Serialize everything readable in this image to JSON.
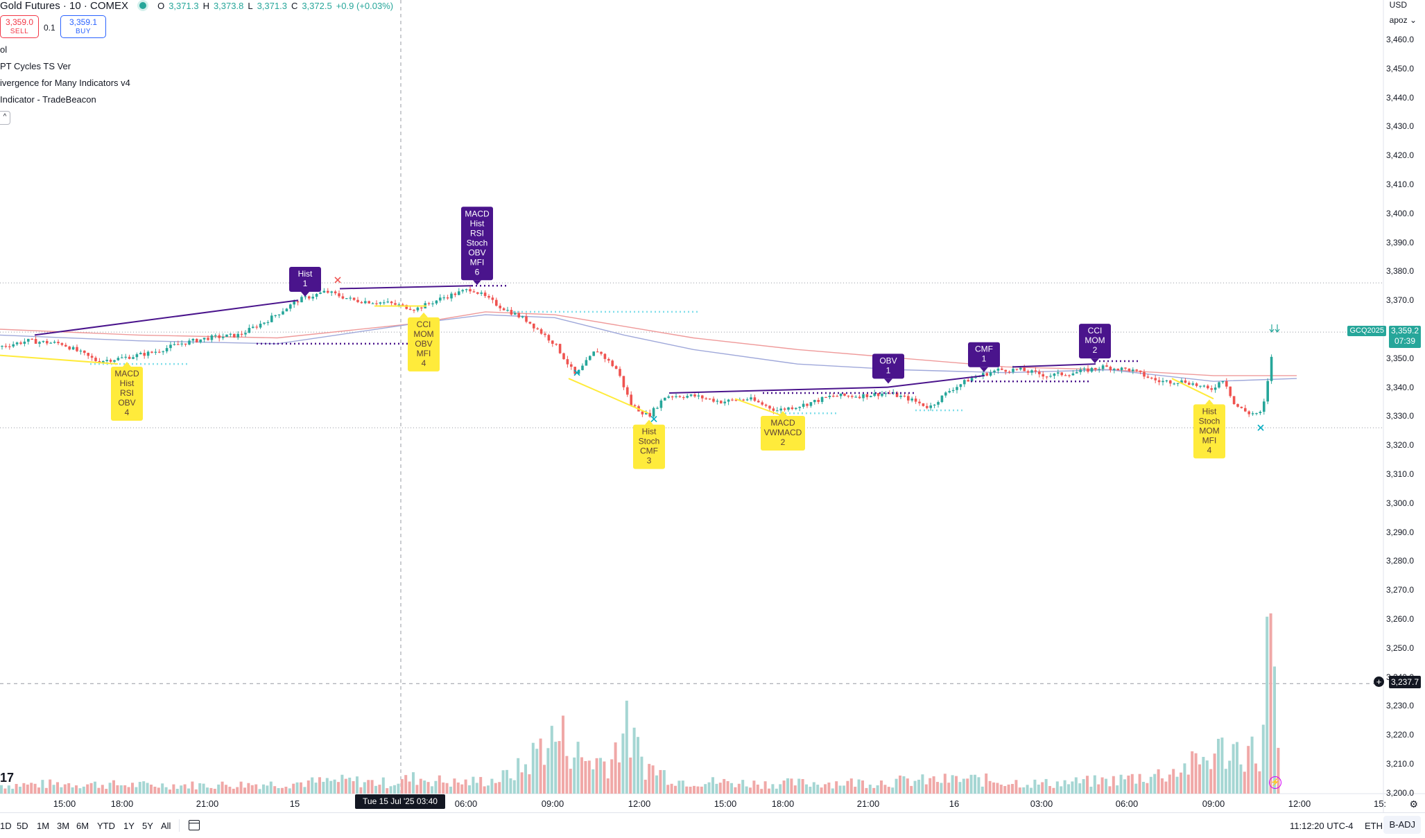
{
  "header": {
    "symbol": "Gold Futures · 10 · COMEX",
    "ohlc": {
      "o_label": "O",
      "o": "3,371.3",
      "h_label": "H",
      "h": "3,373.8",
      "l_label": "L",
      "l": "3,371.3",
      "c_label": "C",
      "c": "3,372.5",
      "change": "+0.9 (+0.03%)"
    },
    "sell_price": "3,359.0",
    "sell_label": "SELL",
    "buy_price": "3,359.1",
    "buy_label": "BUY",
    "quantity": "0.1"
  },
  "legend": [
    "ol",
    "PT Cycles TS Ver",
    "ivergence for Many Indicators v4",
    " Indicator - TradeBeacon"
  ],
  "collapse_label": "^",
  "top_right": {
    "currency": "USD",
    "account": "apoz"
  },
  "price_axis": {
    "ticks": [
      "3,460.0",
      "3,450.0",
      "3,440.0",
      "3,430.0",
      "3,420.0",
      "3,410.0",
      "3,400.0",
      "3,390.0",
      "3,380.0",
      "3,370.0",
      "3,350.0",
      "3,340.0",
      "3,330.0",
      "3,320.0",
      "3,310.0",
      "3,300.0",
      "3,290.0",
      "3,280.0",
      "3,270.0",
      "3,260.0",
      "3,250.0",
      "3,240.0",
      "3,230.0",
      "3,220.0",
      "3,210.0",
      "3,200.0"
    ],
    "last_price": "3,359.2",
    "countdown": "07:39",
    "symbol_tag": "GCQ2025",
    "crosshair_price": "3,237.7"
  },
  "time_axis": {
    "ticks": [
      "15:00",
      "18:00",
      "21:00",
      "15",
      "06:00",
      "09:00",
      "12:00",
      "15:00",
      "18:00",
      "21:00",
      "16",
      "03:00",
      "06:00",
      "09:00",
      "12:00",
      "15:"
    ],
    "crosshair_time": "Tue 15 Jul '25   03:40"
  },
  "bottom": {
    "ranges": [
      "1D",
      "5D",
      "1M",
      "3M",
      "6M",
      "YTD",
      "1Y",
      "5Y",
      "All"
    ],
    "clock": "11:12:20 UTC-4",
    "session": "ETH",
    "adj": "B-ADJ"
  },
  "logo_text": "17",
  "chart_data": {
    "type": "candlestick",
    "interval": "10",
    "ylim": [
      3200,
      3465
    ],
    "colors": {
      "up": "#26a69a",
      "down": "#ef5350",
      "vol_up": "#a5d6d3",
      "vol_down": "#f0a8a7",
      "bull_label": "#ffeb3b",
      "bear_label": "#4a148c",
      "ma1": "#ef9a9a",
      "ma2": "#9fa8da"
    },
    "anchors": [
      {
        "x": 0,
        "p": 3354
      },
      {
        "x": 40,
        "p": 3356
      },
      {
        "x": 90,
        "p": 3355
      },
      {
        "x": 140,
        "p": 3349
      },
      {
        "x": 175,
        "p": 3350
      },
      {
        "x": 220,
        "p": 3352
      },
      {
        "x": 260,
        "p": 3355
      },
      {
        "x": 300,
        "p": 3357
      },
      {
        "x": 345,
        "p": 3358
      },
      {
        "x": 385,
        "p": 3363
      },
      {
        "x": 430,
        "p": 3370
      },
      {
        "x": 470,
        "p": 3373
      },
      {
        "x": 510,
        "p": 3370
      },
      {
        "x": 560,
        "p": 3369
      },
      {
        "x": 600,
        "p": 3367
      },
      {
        "x": 640,
        "p": 3371
      },
      {
        "x": 680,
        "p": 3374
      },
      {
        "x": 720,
        "p": 3368
      },
      {
        "x": 760,
        "p": 3363
      },
      {
        "x": 800,
        "p": 3355
      },
      {
        "x": 830,
        "p": 3344
      },
      {
        "x": 860,
        "p": 3353
      },
      {
        "x": 890,
        "p": 3346
      },
      {
        "x": 910,
        "p": 3334
      },
      {
        "x": 935,
        "p": 3330
      },
      {
        "x": 960,
        "p": 3337
      },
      {
        "x": 1000,
        "p": 3337
      },
      {
        "x": 1040,
        "p": 3335
      },
      {
        "x": 1080,
        "p": 3336
      },
      {
        "x": 1120,
        "p": 3332
      },
      {
        "x": 1160,
        "p": 3334
      },
      {
        "x": 1200,
        "p": 3337
      },
      {
        "x": 1240,
        "p": 3337
      },
      {
        "x": 1280,
        "p": 3338
      },
      {
        "x": 1310,
        "p": 3336
      },
      {
        "x": 1340,
        "p": 3333
      },
      {
        "x": 1370,
        "p": 3339
      },
      {
        "x": 1400,
        "p": 3343
      },
      {
        "x": 1440,
        "p": 3346
      },
      {
        "x": 1470,
        "p": 3346
      },
      {
        "x": 1510,
        "p": 3344
      },
      {
        "x": 1550,
        "p": 3345
      },
      {
        "x": 1590,
        "p": 3347
      },
      {
        "x": 1630,
        "p": 3346
      },
      {
        "x": 1670,
        "p": 3342
      },
      {
        "x": 1710,
        "p": 3342
      },
      {
        "x": 1745,
        "p": 3339
      },
      {
        "x": 1765,
        "p": 3343
      },
      {
        "x": 1780,
        "p": 3334
      },
      {
        "x": 1800,
        "p": 3331
      },
      {
        "x": 1820,
        "p": 3331
      },
      {
        "x": 1830,
        "p": 3344
      },
      {
        "x": 1838,
        "p": 3359
      }
    ],
    "volume_anchors": [
      {
        "x": 0,
        "v": 12
      },
      {
        "x": 100,
        "v": 14
      },
      {
        "x": 200,
        "v": 12
      },
      {
        "x": 300,
        "v": 12
      },
      {
        "x": 400,
        "v": 14
      },
      {
        "x": 500,
        "v": 18
      },
      {
        "x": 560,
        "v": 15
      },
      {
        "x": 600,
        "v": 22
      },
      {
        "x": 660,
        "v": 15
      },
      {
        "x": 720,
        "v": 20
      },
      {
        "x": 760,
        "v": 40
      },
      {
        "x": 780,
        "v": 70
      },
      {
        "x": 810,
        "v": 80
      },
      {
        "x": 840,
        "v": 48
      },
      {
        "x": 880,
        "v": 45
      },
      {
        "x": 900,
        "v": 95
      },
      {
        "x": 930,
        "v": 40
      },
      {
        "x": 980,
        "v": 18
      },
      {
        "x": 1100,
        "v": 14
      },
      {
        "x": 1250,
        "v": 16
      },
      {
        "x": 1400,
        "v": 20
      },
      {
        "x": 1500,
        "v": 14
      },
      {
        "x": 1600,
        "v": 18
      },
      {
        "x": 1680,
        "v": 28
      },
      {
        "x": 1720,
        "v": 40
      },
      {
        "x": 1760,
        "v": 60
      },
      {
        "x": 1800,
        "v": 62
      },
      {
        "x": 1820,
        "v": 48
      },
      {
        "x": 1830,
        "v": 250
      },
      {
        "x": 1845,
        "v": 25
      }
    ],
    "volume_ref_px": 270,
    "ma1": [
      {
        "x": 0,
        "p": 3360
      },
      {
        "x": 200,
        "p": 3358
      },
      {
        "x": 400,
        "p": 3357
      },
      {
        "x": 600,
        "p": 3362
      },
      {
        "x": 700,
        "p": 3366
      },
      {
        "x": 800,
        "p": 3365
      },
      {
        "x": 900,
        "p": 3361
      },
      {
        "x": 1000,
        "p": 3357
      },
      {
        "x": 1150,
        "p": 3353
      },
      {
        "x": 1300,
        "p": 3350
      },
      {
        "x": 1450,
        "p": 3347
      },
      {
        "x": 1600,
        "p": 3346
      },
      {
        "x": 1750,
        "p": 3344
      },
      {
        "x": 1870,
        "p": 3344
      }
    ],
    "ma2": [
      {
        "x": 0,
        "p": 3358
      },
      {
        "x": 200,
        "p": 3356
      },
      {
        "x": 400,
        "p": 3355
      },
      {
        "x": 600,
        "p": 3362
      },
      {
        "x": 700,
        "p": 3365
      },
      {
        "x": 800,
        "p": 3364
      },
      {
        "x": 900,
        "p": 3358
      },
      {
        "x": 1000,
        "p": 3353
      },
      {
        "x": 1150,
        "p": 3348
      },
      {
        "x": 1300,
        "p": 3346
      },
      {
        "x": 1450,
        "p": 3345
      },
      {
        "x": 1600,
        "p": 3346
      },
      {
        "x": 1750,
        "p": 3342
      },
      {
        "x": 1870,
        "p": 3343
      }
    ],
    "divergence_lines": [
      {
        "x1": 50,
        "p1": 3358,
        "x2": 430,
        "p2": 3370,
        "kind": "bear"
      },
      {
        "x1": 490,
        "p1": 3374,
        "x2": 680,
        "p2": 3375,
        "kind": "bear"
      },
      {
        "x1": 965,
        "p1": 3338,
        "x2": 1280,
        "p2": 3340,
        "kind": "bear"
      },
      {
        "x1": 1280,
        "p1": 3340,
        "x2": 1420,
        "p2": 3344,
        "kind": "bear"
      },
      {
        "x1": 1460,
        "p1": 3347,
        "x2": 1580,
        "p2": 3348,
        "kind": "bear"
      },
      {
        "x1": 0,
        "p1": 3351,
        "x2": 170,
        "p2": 3348,
        "kind": "bull"
      },
      {
        "x1": 820,
        "p1": 3343,
        "x2": 935,
        "p2": 3331,
        "kind": "bull"
      },
      {
        "x1": 1060,
        "p1": 3336,
        "x2": 1130,
        "p2": 3330,
        "kind": "bull"
      },
      {
        "x1": 1690,
        "p1": 3343,
        "x2": 1750,
        "p2": 3336,
        "kind": "bull"
      },
      {
        "x1": 540,
        "p1": 3368,
        "x2": 615,
        "p2": 3368,
        "kind": "bull"
      }
    ],
    "dotted_levels": [
      {
        "x1": 370,
        "x2": 600,
        "p": 3355,
        "color": "#4a148c"
      },
      {
        "x1": 680,
        "x2": 730,
        "p": 3375,
        "color": "#4a148c"
      },
      {
        "x1": 1400,
        "x2": 1570,
        "p": 3342,
        "color": "#4a148c"
      },
      {
        "x1": 1585,
        "x2": 1645,
        "p": 3349,
        "color": "#4a148c"
      },
      {
        "x1": 1100,
        "x2": 1320,
        "p": 3338,
        "color": "#4a148c"
      },
      {
        "x1": 740,
        "x2": 1010,
        "p": 3366,
        "color": "#80deea"
      },
      {
        "x1": 130,
        "x2": 270,
        "p": 3348,
        "color": "#80deea"
      },
      {
        "x1": 1120,
        "x2": 1210,
        "p": 3331,
        "color": "#80deea"
      },
      {
        "x1": 1320,
        "x2": 1390,
        "p": 3332,
        "color": "#80deea"
      }
    ],
    "hlines": [
      {
        "p": 3376
      },
      {
        "p": 3359
      },
      {
        "p": 3326
      }
    ],
    "crosshair": {
      "x": 578,
      "p": 3237.7
    },
    "cross_marks": [
      {
        "x": 487,
        "p": 3377,
        "color": "#ef5350"
      },
      {
        "x": 832,
        "p": 3345,
        "color": "#00acc1"
      },
      {
        "x": 943,
        "p": 3329,
        "color": "#00acc1"
      },
      {
        "x": 1818,
        "p": 3326,
        "color": "#00acc1"
      }
    ],
    "signals": [
      {
        "kind": "bear",
        "x": 440,
        "lines": [
          "Hist",
          "1"
        ],
        "anchor_p": 3371
      },
      {
        "kind": "bear",
        "x": 688,
        "lines": [
          "MACD",
          "Hist",
          "RSI",
          "Stoch",
          "OBV",
          "MFI",
          "6"
        ],
        "anchor_p": 3375
      },
      {
        "kind": "bear",
        "x": 1281,
        "lines": [
          "OBV",
          "1"
        ],
        "anchor_p": 3341
      },
      {
        "kind": "bear",
        "x": 1419,
        "lines": [
          "CMF",
          "1"
        ],
        "anchor_p": 3345
      },
      {
        "kind": "bear",
        "x": 1579,
        "lines": [
          "CCI",
          "MOM",
          "2"
        ],
        "anchor_p": 3348
      },
      {
        "kind": "bull",
        "x": 183,
        "lines": [
          "MACD",
          "Hist",
          "RSI",
          "OBV",
          "4"
        ],
        "anchor_p": 3349
      },
      {
        "kind": "bull",
        "x": 611,
        "lines": [
          "CCI",
          "MOM",
          "OBV",
          "MFI",
          "4"
        ],
        "anchor_p": 3366
      },
      {
        "kind": "bull",
        "x": 936,
        "lines": [
          "Hist",
          "Stoch",
          "CMF",
          "3"
        ],
        "anchor_p": 3329
      },
      {
        "kind": "bull",
        "x": 1129,
        "lines": [
          "MACD",
          "VWMACD",
          "2"
        ],
        "anchor_p": 3332
      },
      {
        "kind": "bull",
        "x": 1744,
        "lines": [
          "Hist",
          "Stoch",
          "MOM",
          "MFI",
          "4"
        ],
        "anchor_p": 3336
      }
    ]
  }
}
